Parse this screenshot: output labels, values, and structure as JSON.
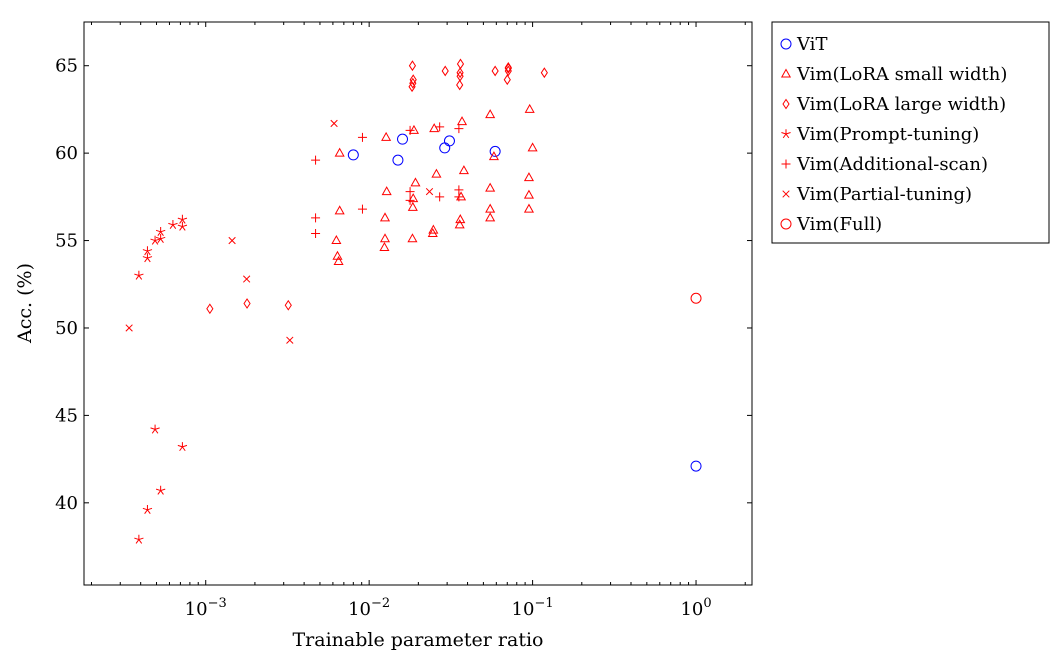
{
  "chart_data": {
    "type": "scatter",
    "title": "",
    "xlabel": "Trainable parameter ratio",
    "ylabel": "Acc. (%)",
    "xscale": "log",
    "xlim": [
      0.00018,
      2.2
    ],
    "ylim": [
      35.3,
      67.5
    ],
    "xticks": [
      {
        "value": 0.001,
        "base": "10",
        "exp": "−3"
      },
      {
        "value": 0.01,
        "base": "10",
        "exp": "−2"
      },
      {
        "value": 0.1,
        "base": "10",
        "exp": "−1"
      },
      {
        "value": 1,
        "base": "10",
        "exp": "0"
      }
    ],
    "yticks": [
      40,
      45,
      50,
      55,
      60,
      65
    ],
    "legend_position": "outside-right",
    "series": [
      {
        "name": "ViT",
        "marker": "circle",
        "color": "#0000ff",
        "points": [
          [
            0.008,
            59.9
          ],
          [
            0.015,
            59.6
          ],
          [
            0.016,
            60.8
          ],
          [
            0.029,
            60.3
          ],
          [
            0.031,
            60.7
          ],
          [
            0.059,
            60.1
          ],
          [
            1.0,
            42.1
          ]
        ]
      },
      {
        "name": "Vim(LoRA small width)",
        "marker": "triangle",
        "color": "#ff0000",
        "points": [
          [
            0.0063,
            55.0
          ],
          [
            0.0064,
            54.1
          ],
          [
            0.0065,
            53.8
          ],
          [
            0.0066,
            56.7
          ],
          [
            0.0066,
            60.0
          ],
          [
            0.0124,
            54.6
          ],
          [
            0.0125,
            55.1
          ],
          [
            0.0125,
            56.3
          ],
          [
            0.0128,
            57.8
          ],
          [
            0.0127,
            60.9
          ],
          [
            0.0184,
            55.1
          ],
          [
            0.0185,
            56.9
          ],
          [
            0.0186,
            57.4
          ],
          [
            0.0192,
            58.3
          ],
          [
            0.0188,
            61.3
          ],
          [
            0.0245,
            55.4
          ],
          [
            0.0247,
            55.6
          ],
          [
            0.0258,
            58.8
          ],
          [
            0.025,
            61.4
          ],
          [
            0.0358,
            55.9
          ],
          [
            0.0361,
            56.2
          ],
          [
            0.0365,
            57.5
          ],
          [
            0.038,
            59.0
          ],
          [
            0.037,
            61.8
          ],
          [
            0.055,
            56.3
          ],
          [
            0.055,
            56.8
          ],
          [
            0.055,
            58.0
          ],
          [
            0.058,
            59.8
          ],
          [
            0.055,
            62.2
          ],
          [
            0.095,
            56.8
          ],
          [
            0.095,
            57.6
          ],
          [
            0.095,
            58.6
          ],
          [
            0.1,
            60.3
          ],
          [
            0.096,
            62.5
          ]
        ]
      },
      {
        "name": "Vim(LoRA large width)",
        "marker": "diamond",
        "color": "#ff0000",
        "points": [
          [
            0.00106,
            51.1
          ],
          [
            0.00179,
            51.4
          ],
          [
            0.0032,
            51.3
          ],
          [
            0.0183,
            63.8
          ],
          [
            0.0185,
            64.0
          ],
          [
            0.0186,
            64.2
          ],
          [
            0.0184,
            65.0
          ],
          [
            0.0292,
            64.7
          ],
          [
            0.0358,
            63.9
          ],
          [
            0.036,
            64.4
          ],
          [
            0.036,
            64.6
          ],
          [
            0.0362,
            65.1
          ],
          [
            0.059,
            64.7
          ],
          [
            0.07,
            64.2
          ],
          [
            0.071,
            64.7
          ],
          [
            0.071,
            64.9
          ],
          [
            0.071,
            64.85
          ],
          [
            0.118,
            64.6
          ]
        ]
      },
      {
        "name": "Vim(Prompt-tuning)",
        "marker": "star",
        "color": "#ff0000",
        "points": [
          [
            0.00039,
            37.9
          ],
          [
            0.00044,
            39.6
          ],
          [
            0.00053,
            40.7
          ],
          [
            0.00049,
            44.2
          ],
          [
            0.00072,
            43.2
          ],
          [
            0.00039,
            53.0
          ],
          [
            0.00044,
            54.0
          ],
          [
            0.00044,
            54.4
          ],
          [
            0.00049,
            55.0
          ],
          [
            0.00053,
            55.1
          ],
          [
            0.00053,
            55.5
          ],
          [
            0.00063,
            55.9
          ],
          [
            0.00072,
            55.8
          ],
          [
            0.00072,
            56.2
          ]
        ]
      },
      {
        "name": "Vim(Additional-scan)",
        "marker": "plus",
        "color": "#ff0000",
        "points": [
          [
            0.0047,
            55.4
          ],
          [
            0.0047,
            56.3
          ],
          [
            0.0047,
            59.6
          ],
          [
            0.0091,
            56.8
          ],
          [
            0.0091,
            60.9
          ],
          [
            0.0178,
            57.3
          ],
          [
            0.0178,
            57.8
          ],
          [
            0.0178,
            61.3
          ],
          [
            0.027,
            57.5
          ],
          [
            0.027,
            61.5
          ],
          [
            0.0354,
            57.5
          ],
          [
            0.0354,
            57.9
          ],
          [
            0.0354,
            61.4
          ]
        ]
      },
      {
        "name": "Vim(Partial-tuning)",
        "marker": "cross",
        "color": "#ff0000",
        "points": [
          [
            0.00034,
            50.0
          ],
          [
            0.00145,
            55.0
          ],
          [
            0.00178,
            52.8
          ],
          [
            0.00327,
            49.3
          ],
          [
            0.0061,
            61.7
          ],
          [
            0.0234,
            57.8
          ]
        ]
      },
      {
        "name": "Vim(Full)",
        "marker": "circle",
        "color": "#ff0000",
        "points": [
          [
            1.0,
            51.7
          ]
        ]
      }
    ]
  }
}
